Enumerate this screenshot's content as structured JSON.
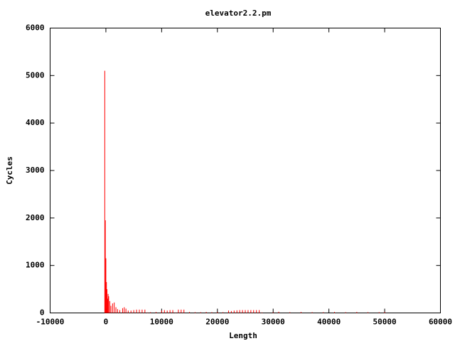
{
  "chart_data": {
    "type": "impulses",
    "title": "elevator2.2.pm",
    "x_label": "Length",
    "y_label": "Cycles",
    "color": "#ff0000",
    "x": [
      -200,
      -100,
      0,
      100,
      200,
      300,
      400,
      500,
      700,
      900,
      1200,
      1500,
      1800,
      2100,
      2500,
      3000,
      3300,
      3600,
      4000,
      4500,
      5000,
      5500,
      6000,
      6500,
      7000,
      7500,
      8000,
      9000,
      10000,
      10500,
      11000,
      11500,
      12000,
      12500,
      13000,
      13500,
      14000,
      15000,
      16000,
      17000,
      18000,
      19000,
      20000,
      21000,
      22000,
      22500,
      23000,
      23500,
      24000,
      24500,
      25000,
      25500,
      26000,
      26500,
      27000,
      27500,
      28000,
      30000,
      31000,
      33000,
      35000,
      37000,
      39000,
      41000,
      43000,
      45000,
      47000,
      49000,
      50000
    ],
    "values": [
      5100,
      1950,
      1150,
      650,
      500,
      300,
      400,
      350,
      250,
      150,
      200,
      220,
      120,
      80,
      60,
      100,
      120,
      90,
      50,
      50,
      60,
      70,
      70,
      70,
      70,
      10,
      15,
      20,
      50,
      60,
      50,
      60,
      60,
      10,
      70,
      70,
      70,
      20,
      15,
      15,
      20,
      15,
      20,
      15,
      50,
      40,
      50,
      55,
      60,
      60,
      60,
      60,
      60,
      60,
      60,
      60,
      10,
      15,
      25,
      15,
      20,
      15,
      15,
      20,
      15,
      20,
      15,
      15,
      20
    ],
    "xlim": [
      -10000,
      60000
    ],
    "ylim": [
      0,
      6000
    ],
    "xticks": [
      -10000,
      0,
      10000,
      20000,
      30000,
      40000,
      50000,
      60000
    ],
    "yticks": [
      0,
      1000,
      2000,
      3000,
      4000,
      5000,
      6000
    ]
  }
}
